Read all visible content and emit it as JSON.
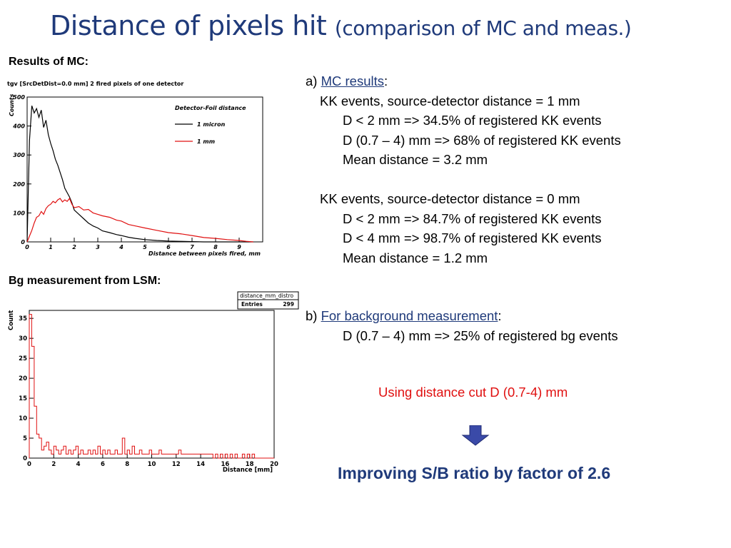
{
  "title": {
    "main": "Distance of pixels hit",
    "sub": "(comparison of MC and meas.)"
  },
  "sections": {
    "mc_label": "Results of MC:",
    "bg_label": "Bg measurement from LSM:"
  },
  "mc_results": {
    "prefix": "a) ",
    "heading": "MC results",
    "colon": ":",
    "group1": {
      "header": "KK events, source-detector distance = 1 mm",
      "lines": [
        "D < 2 mm => 34.5% of registered KK events",
        "D (0.7 – 4) mm => 68% of registered KK events",
        "Mean distance = 3.2 mm"
      ]
    },
    "group2": {
      "header": "KK events, source-detector distance = 0 mm",
      "lines": [
        "D < 2 mm => 84.7% of registered KK events",
        "D < 4 mm => 98.7% of registered KK events",
        "Mean distance = 1.2 mm"
      ]
    }
  },
  "bg_results": {
    "prefix": "b) ",
    "heading": "For background measurement",
    "colon": ":",
    "line": "D (0.7 – 4) mm => 25% of registered bg events"
  },
  "cut_text": "Using distance cut  D (0.7-4) mm",
  "conclusion": "Improving S/B ratio by factor of 2.6",
  "colors": {
    "title": "#1f3a7a",
    "cut_text": "#e01010",
    "arrow": "#3a4aa8",
    "mc_1micron": "#000000",
    "mc_1mm": "#e01010",
    "bg_hist": "#e01010"
  },
  "chart_data": [
    {
      "type": "line",
      "title": "tgv [SrcDetDist=0.0 mm] 2 fired pixels of one detector",
      "legend_title": "Detector-Foil distance",
      "legend_position": "top-right",
      "xlabel": "Distance between pixels fired, mm",
      "ylabel": "Counts",
      "xlim": [
        0,
        10
      ],
      "ylim": [
        0,
        500
      ],
      "xticks": [
        "0",
        "1",
        "2",
        "3",
        "4",
        "5",
        "6",
        "7",
        "8",
        "9"
      ],
      "yticks": [
        "0",
        "100",
        "200",
        "300",
        "400",
        "500"
      ],
      "grid": false,
      "x": [
        0,
        0.1,
        0.2,
        0.3,
        0.4,
        0.5,
        0.6,
        0.7,
        0.8,
        0.9,
        1.0,
        1.1,
        1.2,
        1.3,
        1.4,
        1.5,
        1.6,
        1.7,
        1.8,
        1.9,
        2.0,
        2.2,
        2.4,
        2.6,
        2.8,
        3.0,
        3.2,
        3.5,
        3.8,
        4.0,
        4.3,
        4.6,
        5.0,
        5.5,
        6.0,
        6.5,
        7.0,
        7.5,
        8.0,
        8.5,
        9.0,
        9.3,
        9.6
      ],
      "series": [
        {
          "name": "1 micron",
          "values": [
            0,
            350,
            470,
            445,
            460,
            430,
            455,
            395,
            420,
            370,
            340,
            315,
            285,
            265,
            240,
            215,
            185,
            170,
            155,
            135,
            110,
            95,
            80,
            65,
            55,
            48,
            38,
            32,
            25,
            22,
            16,
            12,
            8,
            5,
            3,
            2,
            1,
            0,
            0,
            0,
            0,
            0,
            0
          ]
        },
        {
          "name": "1 mm",
          "values": [
            0,
            20,
            40,
            65,
            85,
            90,
            105,
            95,
            115,
            125,
            130,
            140,
            135,
            145,
            150,
            138,
            145,
            140,
            150,
            130,
            118,
            122,
            110,
            112,
            100,
            95,
            90,
            85,
            75,
            72,
            60,
            55,
            48,
            40,
            32,
            28,
            22,
            15,
            12,
            8,
            5,
            2,
            0
          ]
        }
      ]
    },
    {
      "type": "bar",
      "stats_box": {
        "name": "distance_mm_distro",
        "entries_label": "Entries",
        "entries_value": "299"
      },
      "xlabel": "Distance [mm]",
      "ylabel": "Count",
      "xlim": [
        0,
        20
      ],
      "ylim": [
        0,
        37
      ],
      "xticks": [
        "0",
        "2",
        "4",
        "6",
        "8",
        "10",
        "12",
        "14",
        "16",
        "18",
        "20"
      ],
      "yticks": [
        "0",
        "5",
        "10",
        "15",
        "20",
        "25",
        "30",
        "35"
      ],
      "grid": false,
      "bin_width": 0.2,
      "values": [
        36,
        28,
        13,
        6,
        5,
        2,
        3,
        4,
        2,
        1,
        3,
        2,
        1,
        2,
        3,
        1,
        2,
        1,
        2,
        3,
        1,
        2,
        1,
        1,
        2,
        1,
        2,
        1,
        3,
        1,
        2,
        1,
        2,
        1,
        1,
        2,
        1,
        1,
        5,
        1,
        2,
        1,
        3,
        1,
        1,
        2,
        1,
        1,
        1,
        2,
        1,
        1,
        1,
        2,
        1,
        1,
        1,
        1,
        1,
        1,
        1,
        2,
        1,
        1,
        1,
        1,
        1,
        1,
        1,
        1,
        1,
        1,
        1,
        1,
        1,
        0,
        1,
        0,
        1,
        0,
        1,
        0,
        1,
        0,
        1,
        0,
        0,
        1,
        0,
        1,
        0,
        1,
        0,
        0,
        0,
        0,
        0,
        0,
        0,
        0
      ]
    }
  ]
}
